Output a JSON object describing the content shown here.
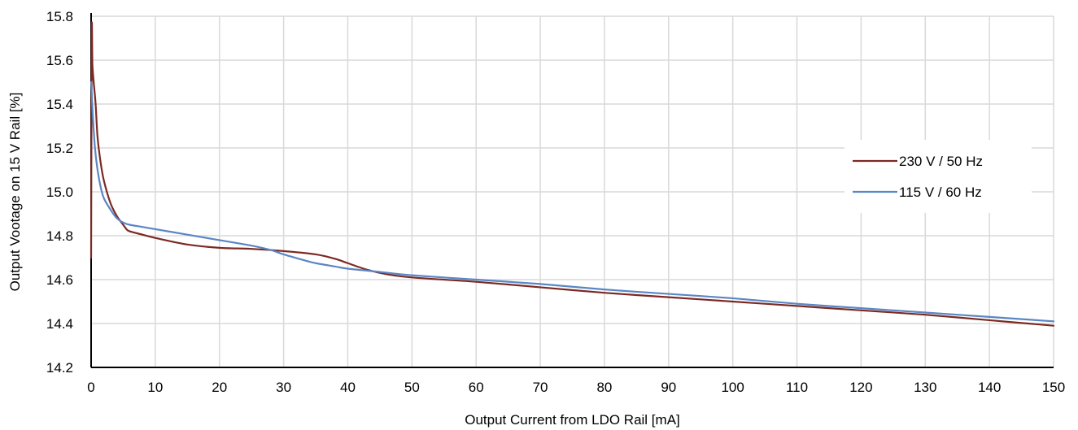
{
  "chart_data": {
    "type": "line",
    "title": "",
    "xlabel": "Output Current from LDO Rail [mA]",
    "ylabel": "Output Vootage on 15 V Rail [%]",
    "xlim": [
      0,
      150
    ],
    "ylim": [
      14.2,
      15.8
    ],
    "x_ticks": [
      0,
      10,
      20,
      30,
      40,
      50,
      60,
      70,
      80,
      90,
      100,
      110,
      120,
      130,
      140,
      150
    ],
    "y_ticks": [
      "14.2",
      "14.4",
      "14.6",
      "14.8",
      "15.0",
      "15.2",
      "15.4",
      "15.6",
      "15.8"
    ],
    "grid": true,
    "legend_position": "right",
    "series": [
      {
        "name": "230 V / 50 Hz",
        "color": "#7b2a23",
        "x": [
          0,
          0.1,
          0.2,
          0.4,
          0.7,
          1,
          1.5,
          2,
          3,
          4,
          5,
          5.5,
          6,
          8,
          10,
          15,
          20,
          25,
          30,
          35,
          38,
          40,
          43,
          46,
          50,
          60,
          70,
          80,
          90,
          100,
          110,
          120,
          130,
          140,
          150
        ],
        "y": [
          14.7,
          15.73,
          15.58,
          15.5,
          15.4,
          15.25,
          15.13,
          15.05,
          14.95,
          14.89,
          14.85,
          14.83,
          14.82,
          14.805,
          14.79,
          14.76,
          14.745,
          14.74,
          14.73,
          14.715,
          14.695,
          14.675,
          14.645,
          14.625,
          14.61,
          14.59,
          14.565,
          14.54,
          14.52,
          14.5,
          14.48,
          14.46,
          14.44,
          14.415,
          14.39
        ]
      },
      {
        "name": "115 V / 60 Hz",
        "color": "#5a86c4",
        "x": [
          0,
          0.3,
          0.6,
          1,
          1.5,
          2,
          3,
          4,
          5,
          6,
          8,
          10,
          15,
          20,
          25,
          28,
          30,
          33,
          35,
          38,
          40,
          45,
          50,
          60,
          70,
          80,
          90,
          100,
          110,
          120,
          130,
          140,
          150
        ],
        "y": [
          15.5,
          15.33,
          15.2,
          15.1,
          15.02,
          14.97,
          14.92,
          14.88,
          14.86,
          14.85,
          14.84,
          14.83,
          14.805,
          14.78,
          14.755,
          14.735,
          14.715,
          14.69,
          14.675,
          14.66,
          14.65,
          14.635,
          14.62,
          14.6,
          14.58,
          14.555,
          14.535,
          14.515,
          14.49,
          14.47,
          14.45,
          14.43,
          14.41
        ]
      }
    ]
  }
}
